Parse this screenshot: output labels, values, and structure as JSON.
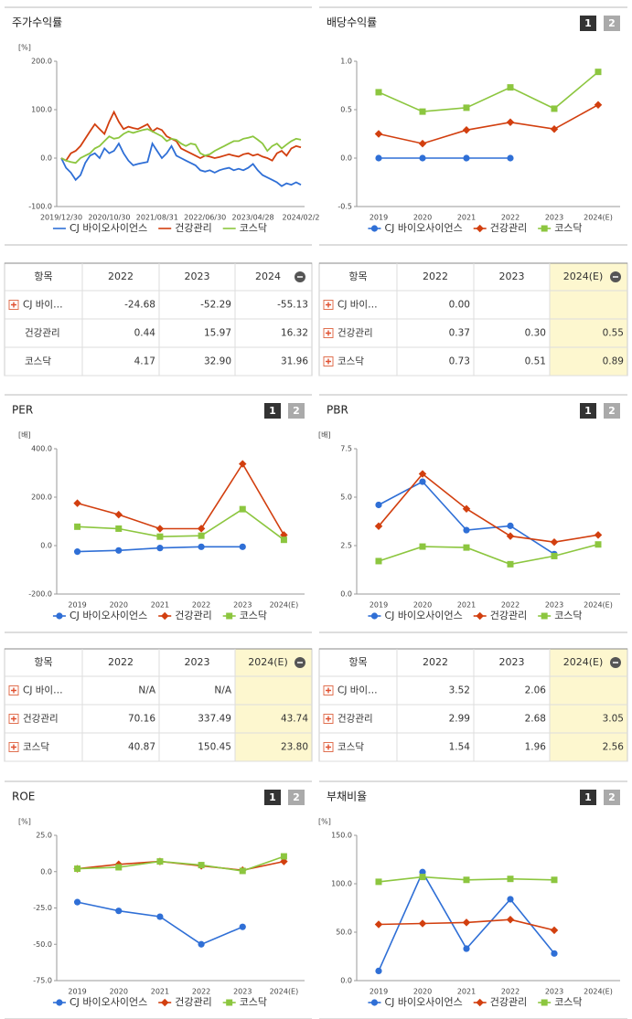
{
  "chart_data": [
    {
      "type": "line",
      "title": "주가수익률",
      "unit": "[%]",
      "markers": false,
      "x": [
        "2019/12/30",
        null,
        null,
        null,
        null,
        null,
        null,
        null,
        null,
        null,
        "2020/10/30",
        null,
        null,
        null,
        null,
        null,
        null,
        null,
        null,
        null,
        "2021/08/31",
        null,
        null,
        null,
        null,
        null,
        null,
        null,
        null,
        null,
        "2022/06/30",
        null,
        null,
        null,
        null,
        null,
        null,
        null,
        null,
        null,
        "2023/04/28",
        null,
        null,
        null,
        null,
        null,
        null,
        null,
        null,
        null,
        "2024/02/2"
      ],
      "ylim": [
        -100,
        200
      ],
      "yticks": [
        {
          "value": 200,
          "label": "200.0"
        },
        {
          "value": 100,
          "label": "100.0"
        },
        {
          "value": 0,
          "label": "0.0"
        },
        {
          "value": -100,
          "label": "-100.0"
        }
      ],
      "series": [
        {
          "name": "CJ 바이오사이언스",
          "color": "#2f6fd6",
          "values": [
            0,
            -20,
            -30,
            -45,
            -35,
            -10,
            5,
            10,
            0,
            20,
            10,
            15,
            30,
            10,
            -5,
            -15,
            -12,
            -10,
            -8,
            30,
            15,
            0,
            10,
            25,
            5,
            0,
            -5,
            -10,
            -15,
            -25,
            -28,
            -25,
            -30,
            -25,
            -22,
            -20,
            -25,
            -22,
            -25,
            -20,
            -12,
            -25,
            -35,
            -40,
            -45,
            -50,
            -58,
            -52,
            -55,
            -50,
            -55
          ]
        },
        {
          "name": "건강관리",
          "color": "#d23f0f",
          "values": [
            0,
            -5,
            10,
            15,
            25,
            40,
            55,
            70,
            60,
            50,
            75,
            95,
            75,
            60,
            65,
            62,
            60,
            65,
            70,
            55,
            62,
            58,
            45,
            40,
            35,
            20,
            15,
            10,
            5,
            0,
            5,
            3,
            0,
            2,
            5,
            8,
            5,
            3,
            8,
            10,
            5,
            8,
            3,
            0,
            -5,
            10,
            15,
            5,
            20,
            25,
            22
          ]
        },
        {
          "name": "코스닥",
          "color": "#8cc63f",
          "values": [
            0,
            -5,
            -8,
            -10,
            0,
            5,
            10,
            20,
            25,
            35,
            45,
            40,
            42,
            50,
            55,
            52,
            55,
            58,
            60,
            55,
            50,
            45,
            35,
            40,
            38,
            30,
            25,
            30,
            28,
            10,
            5,
            8,
            15,
            20,
            25,
            30,
            35,
            35,
            40,
            42,
            45,
            38,
            30,
            15,
            25,
            30,
            20,
            28,
            35,
            40,
            38
          ]
        }
      ]
    },
    {
      "type": "line",
      "title": "배당수익률",
      "buttons": [
        "1",
        "2"
      ],
      "markers": true,
      "categories": [
        "2019",
        "2020",
        "2021",
        "2022",
        "2023",
        "2024(E)"
      ],
      "ylim": [
        -0.5,
        1.0
      ],
      "yticks": [
        {
          "value": 1.0,
          "label": "1.0"
        },
        0.5,
        {
          "value": 0,
          "label": "0.0"
        },
        -0.5
      ],
      "series": [
        {
          "name": "CJ 바이오사이언스",
          "color": "#2f6fd6",
          "marker": "circle",
          "values": [
            0,
            0,
            0,
            0,
            null,
            null
          ]
        },
        {
          "name": "건강관리",
          "color": "#d23f0f",
          "marker": "diamond",
          "values": [
            0.25,
            0.15,
            0.29,
            0.37,
            0.3,
            0.55
          ]
        },
        {
          "name": "코스닥",
          "color": "#8cc63f",
          "marker": "square",
          "values": [
            0.68,
            0.48,
            0.52,
            0.73,
            0.51,
            0.89
          ]
        }
      ]
    },
    {
      "type": "line",
      "title": "PER",
      "unit": "[배]",
      "buttons": [
        "1",
        "2"
      ],
      "markers": true,
      "categories": [
        "2019",
        "2020",
        "2021",
        "2022",
        "2023",
        "2024(E)"
      ],
      "ylim": [
        -200,
        400
      ],
      "yticks": [
        {
          "value": 400,
          "label": "400.0"
        },
        {
          "value": 200,
          "label": "200.0"
        },
        {
          "value": 0,
          "label": "0.0"
        },
        {
          "value": -200,
          "label": "-200.0"
        }
      ],
      "series": [
        {
          "name": "CJ 바이오사이언스",
          "color": "#2f6fd6",
          "marker": "circle",
          "values": [
            -25,
            -20,
            -10,
            -5,
            -5,
            null
          ]
        },
        {
          "name": "건강관리",
          "color": "#d23f0f",
          "marker": "diamond",
          "values": [
            175,
            128,
            70,
            70.16,
            337.49,
            43.74
          ]
        },
        {
          "name": "코스닥",
          "color": "#8cc63f",
          "marker": "square",
          "values": [
            78,
            70,
            37,
            40.87,
            150.45,
            23.8
          ]
        }
      ]
    },
    {
      "type": "line",
      "title": "PBR",
      "unit": "[배]",
      "buttons": [
        "1",
        "2"
      ],
      "markers": true,
      "categories": [
        "2019",
        "2020",
        "2021",
        "2022",
        "2023",
        "2024(E)"
      ],
      "ylim": [
        0,
        7.5
      ],
      "yticks": [
        7.5,
        {
          "value": 5,
          "label": "5.0"
        },
        2.5,
        {
          "value": 0,
          "label": "0.0"
        }
      ],
      "series": [
        {
          "name": "CJ 바이오사이언스",
          "color": "#2f6fd6",
          "marker": "circle",
          "values": [
            4.6,
            5.8,
            3.3,
            3.52,
            2.06,
            null
          ]
        },
        {
          "name": "건강관리",
          "color": "#d23f0f",
          "marker": "diamond",
          "values": [
            3.5,
            6.2,
            4.4,
            2.99,
            2.68,
            3.05
          ]
        },
        {
          "name": "코스닥",
          "color": "#8cc63f",
          "marker": "square",
          "values": [
            1.7,
            2.45,
            2.4,
            1.54,
            1.96,
            2.56
          ]
        }
      ]
    },
    {
      "type": "line",
      "title": "ROE",
      "unit": "[%]",
      "buttons": [
        "1",
        "2"
      ],
      "markers": true,
      "categories": [
        "2019",
        "2020",
        "2021",
        "2022",
        "2023",
        "2024(E)"
      ],
      "ylim": [
        -75,
        25
      ],
      "yticks": [
        {
          "value": 25,
          "label": "25.0"
        },
        {
          "value": 0,
          "label": "0.0"
        },
        {
          "value": -25,
          "label": "-25.0"
        },
        {
          "value": -50,
          "label": "-50.0"
        },
        {
          "value": -75,
          "label": "-75.0"
        }
      ],
      "series": [
        {
          "name": "CJ 바이오사이언스",
          "color": "#2f6fd6",
          "marker": "circle",
          "values": [
            -21,
            -27,
            -31,
            -50,
            -38,
            null
          ]
        },
        {
          "name": "건강관리",
          "color": "#d23f0f",
          "marker": "diamond",
          "values": [
            2,
            5,
            7,
            4,
            1,
            7
          ]
        },
        {
          "name": "코스닥",
          "color": "#8cc63f",
          "marker": "square",
          "values": [
            2,
            3,
            7,
            4.5,
            0.5,
            10.5
          ]
        }
      ]
    },
    {
      "type": "line",
      "title": "부채비율",
      "unit": "[%]",
      "buttons": [
        "1",
        "2"
      ],
      "markers": true,
      "categories": [
        "2019",
        "2020",
        "2021",
        "2022",
        "2023",
        "2024(E)"
      ],
      "ylim": [
        0,
        150
      ],
      "yticks": [
        {
          "value": 150,
          "label": "150.0"
        },
        {
          "value": 100,
          "label": "100.0"
        },
        {
          "value": 50,
          "label": "50.0"
        },
        {
          "value": 0,
          "label": "0.0"
        }
      ],
      "series": [
        {
          "name": "CJ 바이오사이언스",
          "color": "#2f6fd6",
          "marker": "circle",
          "values": [
            10,
            112,
            33,
            84,
            28,
            null
          ]
        },
        {
          "name": "건강관리",
          "color": "#d23f0f",
          "marker": "diamond",
          "values": [
            58,
            59,
            60,
            63,
            52,
            null
          ]
        },
        {
          "name": "코스닥",
          "color": "#8cc63f",
          "marker": "square",
          "values": [
            102,
            107,
            104,
            105,
            104,
            null
          ]
        }
      ]
    }
  ],
  "tables": [
    {
      "header": [
        "항목",
        "2022",
        "2023",
        "2024"
      ],
      "highlight_last": false,
      "expand_icon": [
        true,
        false,
        false
      ],
      "rows": [
        [
          "CJ 바이…",
          "-24.68",
          "-52.29",
          "-55.13"
        ],
        [
          "건강관리",
          "0.44",
          "15.97",
          "16.32"
        ],
        [
          "코스닥",
          "4.17",
          "32.90",
          "31.96"
        ]
      ]
    },
    {
      "header": [
        "항목",
        "2022",
        "2023",
        "2024(E)"
      ],
      "highlight_last": true,
      "expand_icon": [
        true,
        true,
        true
      ],
      "rows": [
        [
          "CJ 바이…",
          "0.00",
          null,
          null
        ],
        [
          "건강관리",
          "0.37",
          "0.30",
          "0.55"
        ],
        [
          "코스닥",
          "0.73",
          "0.51",
          "0.89"
        ]
      ]
    },
    {
      "header": [
        "항목",
        "2022",
        "2023",
        "2024(E)"
      ],
      "highlight_last": true,
      "expand_icon": [
        true,
        true,
        true
      ],
      "rows": [
        [
          "CJ 바이…",
          "N/A",
          "N/A",
          null
        ],
        [
          "건강관리",
          "70.16",
          "337.49",
          "43.74"
        ],
        [
          "코스닥",
          "40.87",
          "150.45",
          "23.80"
        ]
      ]
    },
    {
      "header": [
        "항목",
        "2022",
        "2023",
        "2024(E)"
      ],
      "highlight_last": true,
      "expand_icon": [
        true,
        true,
        true
      ],
      "rows": [
        [
          "CJ 바이…",
          "3.52",
          "2.06",
          null
        ],
        [
          "건강관리",
          "2.99",
          "2.68",
          "3.05"
        ],
        [
          "코스닥",
          "1.54",
          "1.96",
          "2.56"
        ]
      ]
    }
  ]
}
